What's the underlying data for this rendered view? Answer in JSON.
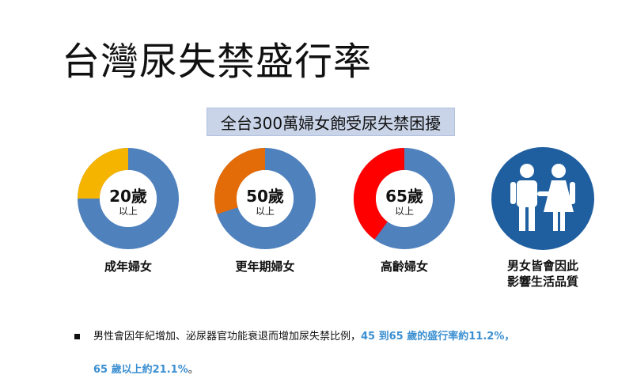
{
  "title": "台灣尿失禁盛行率",
  "banner": "全台300萬婦女飽受尿失禁困擾",
  "chart_data": {
    "type": "pie",
    "charts": [
      {
        "age": "20歲",
        "sub": "以上",
        "caption": "成年婦女",
        "highlight_fraction": 0.25,
        "colors": {
          "rest": "#4f81bd",
          "highlight": "#f4b400"
        }
      },
      {
        "age": "50歲",
        "sub": "以上",
        "caption": "更年期婦女",
        "highlight_fraction": 0.3,
        "colors": {
          "rest": "#4f81bd",
          "highlight": "#e36c09"
        }
      },
      {
        "age": "65歲",
        "sub": "以上",
        "caption": "高齡婦女",
        "highlight_fraction": 0.4,
        "colors": {
          "rest": "#4f81bd",
          "highlight": "#ff0000"
        }
      }
    ]
  },
  "people": {
    "icon": "couple-icon",
    "caption_line1": "男女皆會因此",
    "caption_line2": "影響生活品質",
    "color": "#1f5f9f"
  },
  "note": {
    "line1_text": "男性會因年紀增加、泌尿器官功能衰退而增加尿失禁比例，",
    "line1_highlight": "45 到65 歲的盛行率約11.2%",
    "line1_tail": "，",
    "line2_highlight": "65 歲以上約21.1%",
    "line2_tail": "。"
  }
}
